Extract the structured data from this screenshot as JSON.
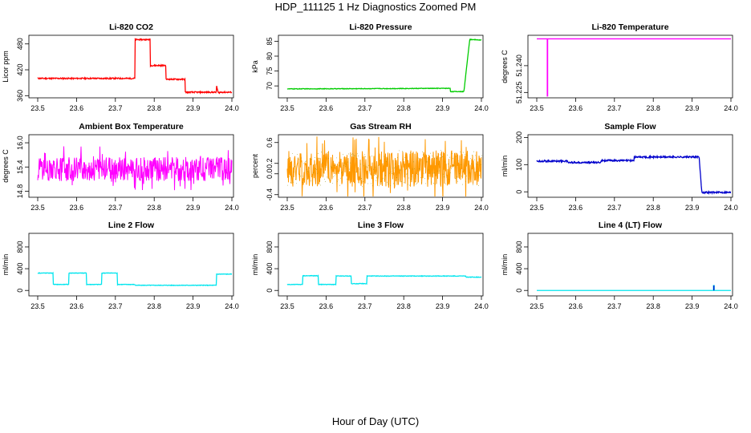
{
  "page": {
    "title": "HDP_111125  1 Hz Diagnostics Zoomed PM",
    "x_caption": "Hour of Day (UTC)"
  },
  "chart_data": [
    {
      "type": "line",
      "title": "Li-820 CO2",
      "ylabel": "Licor ppm",
      "color": "#ff0000",
      "xlim": [
        23.5,
        24.0
      ],
      "ylim": [
        355,
        500
      ],
      "xticks": [
        "23.5",
        "23.6",
        "23.7",
        "23.8",
        "23.9",
        "24.0"
      ],
      "yticks": [
        {
          "v": 360,
          "label": "360"
        },
        {
          "v": 420,
          "label": "420"
        },
        {
          "v": 480,
          "label": "480"
        }
      ],
      "noise": 1.5,
      "x": [
        23.5,
        23.75,
        23.75,
        23.79,
        23.79,
        23.83,
        23.83,
        23.88,
        23.88,
        23.96,
        23.96,
        23.965,
        23.97,
        24.0
      ],
      "y": [
        400,
        400,
        490,
        490,
        430,
        430,
        398,
        398,
        368,
        368,
        385,
        366,
        368,
        368
      ]
    },
    {
      "type": "line",
      "title": "Li-820 Pressure",
      "ylabel": "kPa",
      "color": "#00cc00",
      "xlim": [
        23.5,
        24.0
      ],
      "ylim": [
        66,
        87
      ],
      "xticks": [
        "23.5",
        "23.6",
        "23.7",
        "23.8",
        "23.9",
        "24.0"
      ],
      "yticks": [
        {
          "v": 70,
          "label": "70"
        },
        {
          "v": 75,
          "label": "75"
        },
        {
          "v": 80,
          "label": "80"
        },
        {
          "v": 85,
          "label": "85"
        }
      ],
      "noise": 0.1,
      "x": [
        23.5,
        23.75,
        23.92,
        23.92,
        23.955,
        23.965,
        23.97,
        24.0
      ],
      "y": [
        69.0,
        69.1,
        69.2,
        68.1,
        68.1,
        80,
        85.6,
        85.4
      ]
    },
    {
      "type": "line",
      "title": "Li-820 Temperature",
      "ylabel": "degrees C",
      "color": "#ff00ff",
      "xlim": [
        23.5,
        24.0
      ],
      "ylim": [
        51.222,
        51.257
      ],
      "xticks": [
        "23.5",
        "23.6",
        "23.7",
        "23.8",
        "23.9",
        "24.0"
      ],
      "yticks": [
        {
          "v": 51.225,
          "label": "51.225"
        },
        {
          "v": 51.24,
          "label": "51.240"
        }
      ],
      "noise": 0,
      "x": [
        23.5,
        23.527,
        23.527,
        23.528,
        23.528,
        24.0
      ],
      "y": [
        51.255,
        51.255,
        51.223,
        51.223,
        51.255,
        51.255
      ]
    },
    {
      "type": "line",
      "title": "Ambient Box Temperature",
      "ylabel": "degrees C",
      "color": "#ff00ff",
      "xlim": [
        23.5,
        24.0
      ],
      "ylim": [
        14.65,
        16.2
      ],
      "xticks": [
        "23.5",
        "23.6",
        "23.7",
        "23.8",
        "23.9",
        "24.0"
      ],
      "yticks": [
        {
          "v": 14.8,
          "label": "14.8"
        },
        {
          "v": 15.4,
          "label": "15.4"
        },
        {
          "v": 16.0,
          "label": "16.0"
        }
      ],
      "noise": 0.3,
      "x": [
        23.5,
        24.0
      ],
      "y": [
        15.35,
        15.35
      ]
    },
    {
      "type": "line",
      "title": "Gas Stream RH",
      "ylabel": "percent",
      "color": "#ff9900",
      "color2": "#8a8a00",
      "xlim": [
        23.5,
        24.0
      ],
      "ylim": [
        -0.45,
        0.75
      ],
      "xticks": [
        "23.5",
        "23.6",
        "23.7",
        "23.8",
        "23.9",
        "24.0"
      ],
      "yticks": [
        {
          "v": -0.4,
          "label": "-0.4"
        },
        {
          "v": 0.0,
          "label": "0.0"
        },
        {
          "v": 0.2,
          "label": "0.2"
        },
        {
          "v": 0.6,
          "label": "0.6"
        }
      ],
      "noise": 0.35,
      "x": [
        23.5,
        24.0
      ],
      "y": [
        0.1,
        0.1
      ]
    },
    {
      "type": "line",
      "title": "Sample Flow",
      "ylabel": "ml/min",
      "color": "#0000cc",
      "xlim": [
        23.5,
        24.0
      ],
      "ylim": [
        -20,
        210
      ],
      "xticks": [
        "23.5",
        "23.6",
        "23.7",
        "23.8",
        "23.9",
        "24.0"
      ],
      "yticks": [
        {
          "v": 0,
          "label": "0"
        },
        {
          "v": 100,
          "label": "100"
        },
        {
          "v": 200,
          "label": "200"
        }
      ],
      "noise": 3,
      "x": [
        23.5,
        23.58,
        23.58,
        23.665,
        23.665,
        23.75,
        23.75,
        23.918,
        23.925,
        24.0
      ],
      "y": [
        113,
        113,
        108,
        108,
        115,
        115,
        128,
        128,
        -2,
        -2
      ]
    },
    {
      "type": "line",
      "title": "Line 2 Flow",
      "ylabel": "ml/min",
      "color": "#00e5ee",
      "xlim": [
        23.5,
        24.0
      ],
      "ylim": [
        -100,
        1050
      ],
      "xticks": [
        "23.5",
        "23.6",
        "23.7",
        "23.8",
        "23.9",
        "24.0"
      ],
      "yticks": [
        {
          "v": 0,
          "label": "0"
        },
        {
          "v": 400,
          "label": "400"
        },
        {
          "v": 800,
          "label": "800"
        }
      ],
      "noise": 5,
      "x": [
        23.5,
        23.5,
        23.54,
        23.54,
        23.58,
        23.58,
        23.625,
        23.625,
        23.665,
        23.665,
        23.705,
        23.705,
        23.75,
        23.75,
        23.96,
        23.96,
        24.0
      ],
      "y": [
        100,
        320,
        320,
        110,
        110,
        320,
        320,
        110,
        110,
        320,
        320,
        110,
        110,
        95,
        95,
        300,
        300
      ]
    },
    {
      "type": "line",
      "title": "Line 3 Flow",
      "ylabel": "ml/min",
      "color": "#00e5ee",
      "xlim": [
        23.5,
        24.0
      ],
      "ylim": [
        -100,
        1050
      ],
      "xticks": [
        "23.5",
        "23.6",
        "23.7",
        "23.8",
        "23.9",
        "24.0"
      ],
      "yticks": [
        {
          "v": 0,
          "label": "0"
        },
        {
          "v": 400,
          "label": "400"
        },
        {
          "v": 800,
          "label": "800"
        }
      ],
      "noise": 5,
      "x": [
        23.5,
        23.5,
        23.5,
        23.54,
        23.54,
        23.58,
        23.58,
        23.625,
        23.625,
        23.665,
        23.665,
        23.705,
        23.705,
        23.96,
        23.96,
        24.0
      ],
      "y": [
        290,
        100,
        110,
        110,
        270,
        270,
        110,
        110,
        265,
        265,
        125,
        125,
        265,
        265,
        245,
        245
      ]
    },
    {
      "type": "line",
      "title": "Line 4 (LT) Flow",
      "ylabel": "ml/min",
      "color": "#00e5ee",
      "color2": "#0000cc",
      "xlim": [
        23.5,
        24.0
      ],
      "ylim": [
        -100,
        1050
      ],
      "xticks": [
        "23.5",
        "23.6",
        "23.7",
        "23.8",
        "23.9",
        "24.0"
      ],
      "yticks": [
        {
          "v": 0,
          "label": "0"
        },
        {
          "v": 400,
          "label": "400"
        },
        {
          "v": 800,
          "label": "800"
        }
      ],
      "noise": 0,
      "x": [
        23.5,
        23.955,
        23.955,
        23.957,
        23.957,
        24.0
      ],
      "y": [
        0,
        0,
        90,
        90,
        0,
        0
      ]
    }
  ]
}
